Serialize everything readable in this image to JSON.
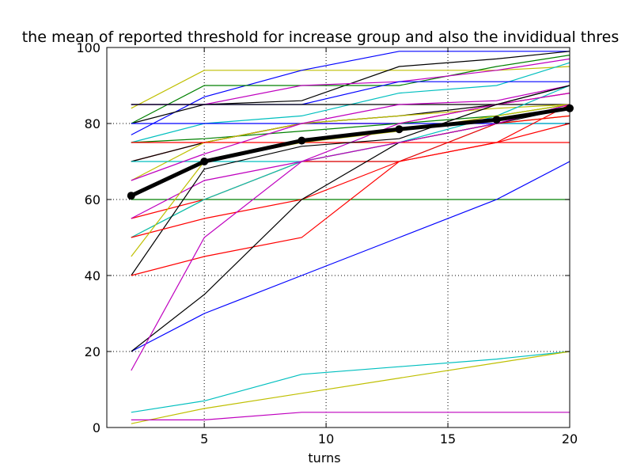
{
  "chart_data": {
    "type": "line",
    "title": "the mean of reported threshold for increase group and also the invididual thres",
    "xlabel": "turns",
    "ylabel": "",
    "xlim": [
      1,
      20
    ],
    "ylim": [
      0,
      100
    ],
    "grid": true,
    "x_ticks": [
      5,
      10,
      15,
      20
    ],
    "y_ticks": [
      0,
      20,
      40,
      60,
      80,
      100
    ],
    "x": [
      2,
      5,
      9,
      13,
      17,
      20
    ],
    "series": [
      {
        "color": "#bfbf00",
        "values": [
          84,
          94,
          94,
          94,
          94,
          95
        ]
      },
      {
        "color": "#0000ff",
        "values": [
          77,
          87,
          94,
          99,
          99,
          99
        ]
      },
      {
        "color": "#000000",
        "values": [
          80,
          85,
          86,
          95,
          97,
          99
        ]
      },
      {
        "color": "#008000",
        "values": [
          80,
          90,
          90,
          90,
          95,
          98
        ]
      },
      {
        "color": "#bf00bf",
        "values": [
          85,
          85,
          90,
          91,
          94,
          97
        ]
      },
      {
        "color": "#00bfbf",
        "values": [
          75,
          80,
          82,
          88,
          90,
          96
        ]
      },
      {
        "color": "#0000ff",
        "values": [
          85,
          85,
          85,
          91,
          91,
          91
        ]
      },
      {
        "color": "#000000",
        "values": [
          85,
          85,
          85,
          85,
          85,
          85
        ]
      },
      {
        "color": "#ff0000",
        "values": [
          70,
          75,
          80,
          80,
          85,
          88
        ]
      },
      {
        "color": "#0000ff",
        "values": [
          80,
          80,
          80,
          80,
          80,
          80
        ]
      },
      {
        "color": "#008000",
        "values": [
          75,
          76,
          78,
          80,
          82,
          85
        ]
      },
      {
        "color": "#000000",
        "values": [
          70,
          75,
          80,
          82,
          85,
          90
        ]
      },
      {
        "color": "#bfbf00",
        "values": [
          65,
          75,
          80,
          82,
          84,
          85
        ]
      },
      {
        "color": "#ff0000",
        "values": [
          75,
          75,
          75,
          75,
          75,
          75
        ]
      },
      {
        "color": "#00bfbf",
        "values": [
          70,
          70,
          70,
          70,
          80,
          80
        ]
      },
      {
        "color": "#bf00bf",
        "values": [
          65,
          72,
          80,
          85,
          86,
          90
        ]
      },
      {
        "color": "#008000",
        "values": [
          60,
          60,
          60,
          60,
          60,
          60
        ]
      },
      {
        "color": "#ff0000",
        "values": [
          55,
          60,
          70,
          70,
          75,
          85
        ]
      },
      {
        "color": "#bfbf00",
        "values": [
          50,
          60,
          70,
          75,
          80,
          82
        ]
      },
      {
        "color": "#00bfbf",
        "values": [
          50,
          60,
          70,
          75,
          82,
          90
        ]
      },
      {
        "color": "#bf00bf",
        "values": [
          55,
          65,
          70,
          80,
          85,
          88
        ]
      },
      {
        "color": "#000000",
        "values": [
          40,
          68,
          74,
          76,
          85,
          90
        ]
      },
      {
        "color": "#ff0000",
        "values": [
          50,
          55,
          60,
          70,
          80,
          82
        ]
      },
      {
        "color": "#bfbf00",
        "values": [
          45,
          70,
          75,
          78,
          82,
          85
        ]
      },
      {
        "color": "#ff0000",
        "values": [
          40,
          45,
          50,
          70,
          75,
          80
        ]
      },
      {
        "color": "#0000ff",
        "values": [
          20,
          30,
          40,
          50,
          60,
          70
        ]
      },
      {
        "color": "#000000",
        "values": [
          20,
          35,
          60,
          75,
          80,
          84
        ]
      },
      {
        "color": "#bf00bf",
        "values": [
          15,
          50,
          70,
          75,
          80,
          85
        ]
      },
      {
        "color": "#00bfbf",
        "values": [
          4,
          7,
          14,
          16,
          18,
          20
        ]
      },
      {
        "color": "#bfbf00",
        "values": [
          1,
          5,
          9,
          13,
          17,
          20
        ]
      },
      {
        "color": "#bf00bf",
        "values": [
          2,
          2,
          4,
          4,
          4,
          4
        ]
      }
    ],
    "mean": {
      "color": "#000000",
      "values": [
        61,
        70,
        75.5,
        78.5,
        81,
        84
      ]
    }
  }
}
